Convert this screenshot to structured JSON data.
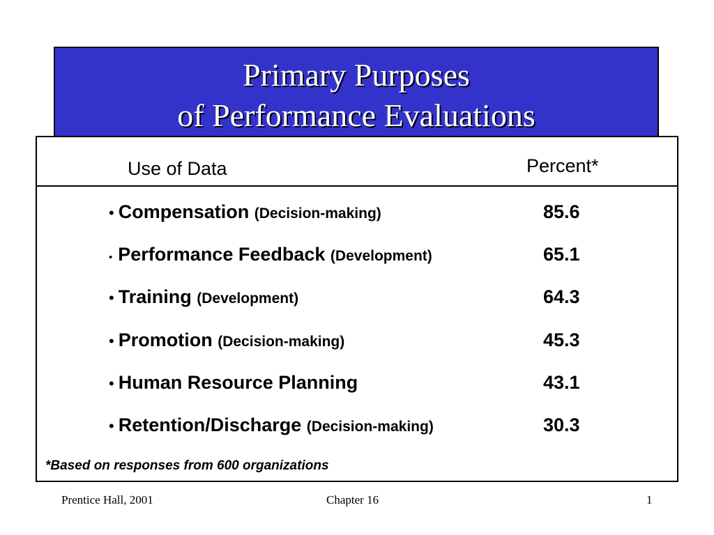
{
  "title": {
    "line1": "Primary Purposes",
    "line2": "of Performance Evaluations"
  },
  "table": {
    "col_use": "Use of Data",
    "col_percent": "Percent*",
    "bullet": "•",
    "rows": [
      {
        "label": "Compensation",
        "qualifier": "(Decision-making)",
        "value": "85.6"
      },
      {
        "label": "Performance Feedback",
        "qualifier": "(Development)",
        "value": "65.1"
      },
      {
        "label": "Training",
        "qualifier": "(Development)",
        "value": "64.3"
      },
      {
        "label": "Promotion",
        "qualifier": "(Decision-making)",
        "value": "45.3"
      },
      {
        "label": "Human Resource Planning",
        "qualifier": "",
        "value": "43.1"
      },
      {
        "label": "Retention/Discharge",
        "qualifier": "(Decision-making)",
        "value": "30.3"
      }
    ],
    "footnote": "*Based on responses from 600 organizations"
  },
  "footer": {
    "publisher": "Prentice Hall, 2001",
    "chapter": "Chapter 16",
    "page": "1"
  },
  "colors": {
    "title_background": "#3333cc",
    "title_text": "#ffffff",
    "border": "#000000"
  }
}
